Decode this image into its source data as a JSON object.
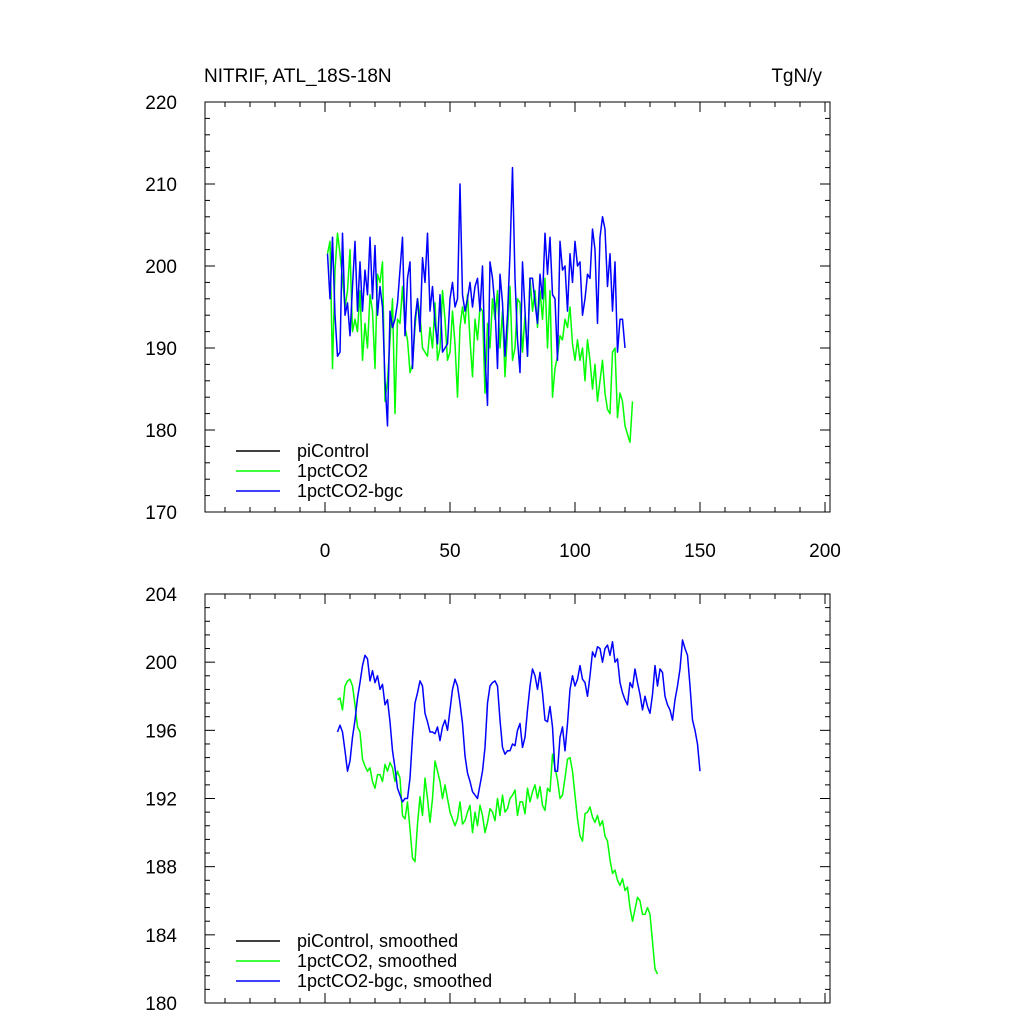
{
  "chart_data": [
    {
      "type": "line",
      "title": "NITRIF, ATL_18S-18N",
      "units": "TgN/y",
      "xlim": [
        -48,
        202
      ],
      "ylim": [
        170,
        220
      ],
      "xticks": [
        0,
        50,
        100,
        150,
        200
      ],
      "xtick_labels": [
        "0",
        "50",
        "100",
        "150",
        "200"
      ],
      "yticks": [
        170,
        180,
        190,
        200,
        210,
        220
      ],
      "ytick_labels": [
        "170",
        "180",
        "190",
        "200",
        "210",
        "220"
      ],
      "legend": [
        "piControl",
        "1pctCO2",
        "1pctCO2-bgc"
      ],
      "legend_position": "bottom-left",
      "series": [
        {
          "name": "piControl",
          "color": "#000000",
          "x": [],
          "values": []
        },
        {
          "name": "1pctCO2",
          "color": "#00ff00",
          "x_start": 1,
          "values": [
            201.5,
            203.0,
            187.5,
            199.5,
            204.0,
            201.5,
            198.5,
            195.0,
            197.0,
            202.0,
            192.0,
            193.5,
            192.0,
            197.0,
            188.5,
            193.0,
            190.0,
            196.5,
            194.5,
            187.5,
            199.0,
            198.0,
            200.5,
            183.5,
            186.0,
            191.0,
            196.0,
            182.0,
            193.5,
            193.0,
            197.5,
            192.5,
            191.0,
            187.0,
            188.0,
            192.5,
            196.0,
            194.0,
            190.0,
            189.5,
            189.0,
            192.5,
            190.0,
            195.5,
            188.5,
            190.0,
            197.0,
            193.5,
            188.5,
            189.5,
            194.5,
            190.5,
            184.0,
            192.5,
            195.0,
            193.0,
            196.5,
            191.0,
            186.5,
            193.5,
            191.0,
            195.0,
            194.5,
            184.5,
            193.0,
            190.0,
            196.0,
            193.5,
            197.0,
            190.0,
            194.5,
            186.5,
            192.0,
            197.5,
            188.5,
            190.0,
            196.0,
            195.5,
            189.5,
            194.0,
            189.0,
            198.5,
            194.5,
            197.0,
            192.5,
            197.0,
            193.5,
            198.5,
            190.0,
            197.0,
            184.0,
            187.5,
            189.0,
            191.5,
            191.0,
            193.5,
            192.5,
            195.0,
            190.5,
            188.5,
            191.0,
            188.5,
            190.0,
            186.0,
            191.0,
            188.5,
            185.0,
            188.0,
            183.5,
            186.0,
            188.5,
            184.5,
            182.5,
            182.0,
            189.5,
            190.0,
            181.5,
            184.5,
            183.5,
            180.5,
            179.5,
            178.5,
            183.5
          ]
        },
        {
          "name": "1pctCO2-bgc",
          "color": "#0000ff",
          "x_start": 1,
          "values": [
            201.5,
            196.0,
            203.5,
            194.0,
            189.0,
            189.5,
            204.0,
            194.0,
            195.5,
            191.5,
            197.5,
            203.0,
            194.5,
            200.5,
            194.5,
            199.5,
            196.5,
            203.5,
            196.0,
            202.5,
            194.0,
            197.5,
            195.0,
            186.0,
            180.5,
            194.5,
            192.5,
            193.5,
            195.5,
            199.5,
            203.5,
            191.5,
            198.5,
            200.5,
            187.5,
            193.5,
            196.0,
            192.0,
            201.0,
            198.0,
            204.0,
            194.5,
            197.5,
            193.0,
            190.5,
            196.5,
            189.5,
            190.0,
            190.5,
            196.0,
            198.0,
            195.0,
            196.0,
            210.0,
            196.5,
            194.5,
            196.0,
            198.0,
            195.0,
            197.5,
            198.5,
            194.5,
            200.0,
            189.0,
            183.0,
            200.5,
            198.5,
            195.0,
            187.5,
            199.0,
            195.5,
            189.0,
            194.0,
            201.5,
            212.0,
            198.5,
            191.0,
            187.0,
            200.5,
            194.5,
            189.0,
            198.5,
            198.5,
            195.5,
            193.0,
            199.0,
            196.0,
            204.0,
            199.0,
            203.5,
            196.5,
            196.0,
            188.5,
            203.0,
            199.5,
            200.0,
            194.5,
            201.5,
            198.0,
            203.0,
            200.0,
            200.5,
            194.0,
            196.0,
            199.0,
            198.5,
            204.5,
            202.0,
            193.0,
            203.5,
            206.0,
            204.5,
            197.5,
            201.5,
            194.5,
            200.5,
            189.5,
            193.5,
            193.5,
            190.0
          ]
        }
      ]
    },
    {
      "type": "line",
      "xlim": [
        -48,
        202
      ],
      "ylim": [
        180,
        204
      ],
      "xticks": [
        0,
        50,
        100,
        150,
        200
      ],
      "yticks": [
        180,
        184,
        188,
        192,
        196,
        200,
        204
      ],
      "ytick_labels": [
        "180",
        "184",
        "188",
        "192",
        "196",
        "200",
        "204"
      ],
      "legend": [
        "piControl, smoothed",
        "1pctCO2, smoothed",
        "1pctCO2-bgc, smoothed"
      ],
      "legend_position": "bottom-left",
      "series": [
        {
          "name": "piControl, smoothed",
          "color": "#000000",
          "x": [],
          "values": []
        },
        {
          "name": "1pctCO2, smoothed",
          "color": "#00ff00",
          "x_start": 5,
          "values": [
            197.8,
            197.9,
            197.2,
            198.6,
            198.9,
            199.0,
            198.6,
            197.5,
            196.2,
            195.9,
            194.3,
            193.9,
            193.6,
            193.8,
            193.0,
            192.6,
            193.4,
            193.4,
            193.0,
            194.0,
            193.6,
            194.1,
            193.8,
            193.0,
            193.6,
            193.2,
            191.0,
            190.8,
            191.8,
            190.2,
            188.5,
            188.3,
            190.5,
            192.1,
            191.0,
            193.2,
            192.0,
            190.6,
            192.0,
            194.2,
            193.6,
            193.0,
            192.0,
            192.8,
            192.0,
            191.2,
            190.8,
            190.4,
            190.8,
            191.8,
            190.5,
            190.7,
            191.2,
            191.6,
            190.0,
            191.2,
            190.4,
            191.6,
            191.0,
            190.0,
            190.6,
            191.4,
            191.2,
            190.7,
            192.0,
            191.0,
            192.2,
            191.2,
            191.4,
            192.0,
            192.2,
            192.5,
            191.0,
            191.8,
            191.8,
            191.1,
            192.6,
            191.8,
            192.4,
            192.8,
            192.0,
            192.7,
            191.6,
            191.3,
            192.6,
            192.4,
            194.6,
            193.8,
            193.1,
            192.0,
            192.2,
            193.2,
            194.3,
            194.4,
            193.6,
            192.2,
            190.8,
            189.8,
            189.5,
            191.1,
            191.2,
            191.5,
            190.9,
            190.6,
            191.0,
            190.4,
            190.7,
            189.8,
            189.5,
            188.4,
            187.6,
            187.8,
            187.2,
            186.9,
            187.3,
            186.6,
            186.8,
            185.6,
            184.8,
            185.5,
            186.2,
            186.0,
            185.2,
            185.2,
            185.6,
            185.2,
            183.6,
            182.0,
            181.7
          ]
        },
        {
          "name": "1pctCO2-bgc, smoothed",
          "color": "#0000ff",
          "x_start": 5,
          "values": [
            195.9,
            196.3,
            195.9,
            194.8,
            193.6,
            194.2,
            195.6,
            196.6,
            197.9,
            198.8,
            199.8,
            200.4,
            200.2,
            198.9,
            199.5,
            198.8,
            199.2,
            198.4,
            198.7,
            197.5,
            197.8,
            196.5,
            194.8,
            193.8,
            192.6,
            192.2,
            191.8,
            192.0,
            192.0,
            193.2,
            195.6,
            197.6,
            198.2,
            198.9,
            198.6,
            197.0,
            196.5,
            195.9,
            195.9,
            195.8,
            196.2,
            195.4,
            196.2,
            196.6,
            196.0,
            197.2,
            198.4,
            199.0,
            198.6,
            197.6,
            196.4,
            194.5,
            193.5,
            193.0,
            192.4,
            192.2,
            192.0,
            192.8,
            193.6,
            195.0,
            197.6,
            198.6,
            198.8,
            198.9,
            198.6,
            196.6,
            195.0,
            194.6,
            194.8,
            194.8,
            195.2,
            195.1,
            196.0,
            196.4,
            195.0,
            195.6,
            197.2,
            198.6,
            199.6,
            199.2,
            198.4,
            199.4,
            198.2,
            196.6,
            196.5,
            197.4,
            196.2,
            193.6,
            193.6,
            195.6,
            196.2,
            194.8,
            196.4,
            198.4,
            199.2,
            198.6,
            199.0,
            199.8,
            199.0,
            198.8,
            198.0,
            199.2,
            200.6,
            200.3,
            200.9,
            200.8,
            200.0,
            200.8,
            201.0,
            200.4,
            201.2,
            200.0,
            200.2,
            198.8,
            198.2,
            197.8,
            197.5,
            198.8,
            198.5,
            199.6,
            198.8,
            198.1,
            197.2,
            198.0,
            197.4,
            197.0,
            198.1,
            199.8,
            198.6,
            199.6,
            199.4,
            198.0,
            197.5,
            197.2,
            196.6,
            197.8,
            198.6,
            199.6,
            201.3,
            200.8,
            200.4,
            198.6,
            196.6,
            196.0,
            195.2,
            193.6
          ]
        }
      ]
    }
  ]
}
